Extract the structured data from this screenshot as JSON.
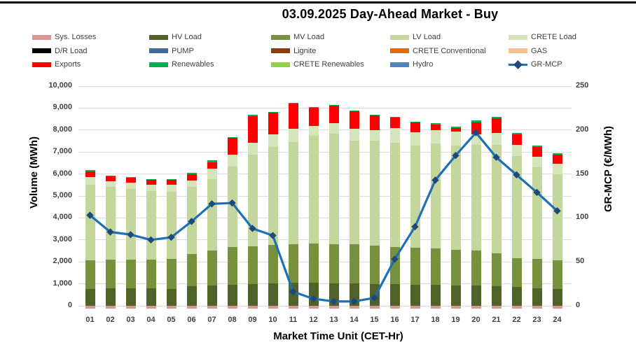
{
  "page": {
    "title": "03.09.2025  Day-Ahead Market - Buy"
  },
  "chart_data": {
    "type": "bar",
    "subtype": "stacked-bar-with-line-overlay",
    "title": "03.09.2025  Day-Ahead Market - Buy",
    "xlabel": "Market Time Unit (CET-Hr)",
    "ylabel_left": "Volume (MWh)",
    "ylabel_right": "GR-MCP (€/MWh)",
    "categories": [
      "01",
      "02",
      "03",
      "04",
      "05",
      "06",
      "07",
      "08",
      "09",
      "10",
      "11",
      "12",
      "13",
      "14",
      "15",
      "16",
      "17",
      "18",
      "19",
      "20",
      "21",
      "22",
      "23",
      "24"
    ],
    "y_left": {
      "min": 0,
      "max": 10000,
      "step": 1000,
      "ticks": [
        "0",
        "1,000",
        "2,000",
        "3,000",
        "4,000",
        "5,000",
        "6,000",
        "7,000",
        "8,000",
        "9,000",
        "10,000"
      ]
    },
    "y_right": {
      "min": 0,
      "max": 250,
      "step": 50,
      "ticks": [
        "0",
        "50",
        "100",
        "150",
        "200",
        "250"
      ]
    },
    "grid": "horizontal",
    "legend_position": "top",
    "series": [
      {
        "name": "Sys. Losses",
        "color": "#D99694",
        "below_axis": true,
        "values": [
          130,
          130,
          130,
          130,
          130,
          130,
          130,
          130,
          130,
          130,
          130,
          130,
          130,
          130,
          130,
          130,
          130,
          130,
          130,
          130,
          130,
          130,
          130,
          130
        ]
      },
      {
        "name": "HV Load",
        "color": "#4F6228",
        "below_axis": false,
        "values": [
          760,
          790,
          790,
          790,
          770,
          880,
          915,
          965,
          985,
          1015,
          1040,
          1040,
          1030,
          1020,
          990,
          990,
          970,
          950,
          930,
          910,
          900,
          850,
          800,
          780
        ]
      },
      {
        "name": "MV Load",
        "color": "#76923C",
        "below_axis": false,
        "values": [
          1300,
          1315,
          1315,
          1315,
          1365,
          1485,
          1605,
          1710,
          1720,
          1760,
          1750,
          1790,
          1780,
          1770,
          1735,
          1690,
          1680,
          1650,
          1620,
          1610,
          1490,
          1330,
          1330,
          1280
        ]
      },
      {
        "name": "LV Load",
        "color": "#C3D69B",
        "below_axis": false,
        "values": [
          3440,
          3315,
          3225,
          3125,
          3065,
          3040,
          3245,
          3660,
          4190,
          4470,
          4660,
          4900,
          5010,
          4735,
          4780,
          4745,
          4650,
          4800,
          4750,
          4820,
          4950,
          4640,
          4170,
          3940
        ]
      },
      {
        "name": "CRETE Load",
        "color": "#D6E4BC",
        "below_axis": false,
        "values": [
          360,
          245,
          275,
          275,
          300,
          310,
          485,
          535,
          520,
          570,
          620,
          465,
          490,
          520,
          485,
          670,
          590,
          590,
          640,
          465,
          515,
          520,
          470,
          460
        ]
      },
      {
        "name": "Exports",
        "color": "#FE0000",
        "below_axis": false,
        "values": [
          250,
          240,
          230,
          230,
          240,
          280,
          290,
          760,
          1220,
          965,
          1140,
          820,
          800,
          830,
          675,
          490,
          465,
          260,
          155,
          550,
          675,
          465,
          445,
          415
        ]
      },
      {
        "name": "Renewables",
        "color": "#00B050",
        "below_axis": false,
        "values": [
          60,
          30,
          20,
          20,
          20,
          70,
          70,
          30,
          65,
          30,
          25,
          15,
          20,
          20,
          15,
          20,
          15,
          75,
          50,
          70,
          70,
          75,
          75,
          70
        ]
      }
    ],
    "line_series": {
      "name": "GR-MCP",
      "color": "#1F6FB5",
      "marker": "diamond",
      "marker_color": "#1F497D",
      "axis": "right",
      "values": [
        103,
        84,
        81,
        75,
        78,
        96,
        116,
        117,
        88,
        80,
        16,
        8,
        5,
        5,
        9,
        53,
        90,
        143,
        171,
        197,
        169,
        149,
        129,
        108
      ]
    },
    "legend": [
      {
        "label": "Sys. Losses",
        "color": "#D99694",
        "type": "swatch"
      },
      {
        "label": "HV Load",
        "color": "#4F6228",
        "type": "swatch"
      },
      {
        "label": "MV Load",
        "color": "#76923C",
        "type": "swatch"
      },
      {
        "label": "LV Load",
        "color": "#C3D69B",
        "type": "swatch"
      },
      {
        "label": "CRETE Load",
        "color": "#D6E4BC",
        "type": "swatch"
      },
      {
        "label": "D/R Load",
        "color": "#000000",
        "type": "swatch"
      },
      {
        "label": "PUMP",
        "color": "#406A9F",
        "type": "swatch"
      },
      {
        "label": "Lignite",
        "color": "#8E3B08",
        "type": "swatch"
      },
      {
        "label": "CRETE Conventional",
        "color": "#E36C0A",
        "type": "swatch"
      },
      {
        "label": "GAS",
        "color": "#FAC090",
        "type": "swatch"
      },
      {
        "label": "Exports",
        "color": "#FE0000",
        "type": "swatch"
      },
      {
        "label": "Renewables",
        "color": "#00B050",
        "type": "swatch"
      },
      {
        "label": "CRETE Renewables",
        "color": "#92D050",
        "type": "swatch"
      },
      {
        "label": "Hydro",
        "color": "#5083BE",
        "type": "swatch"
      },
      {
        "label": "GR-MCP",
        "color": "#1F6FB5",
        "type": "line-marker",
        "marker_color": "#1F497D"
      }
    ],
    "colors": {
      "gridline": "#DCDCDC",
      "tick_text": "#404040",
      "title_text": "#000000"
    }
  }
}
